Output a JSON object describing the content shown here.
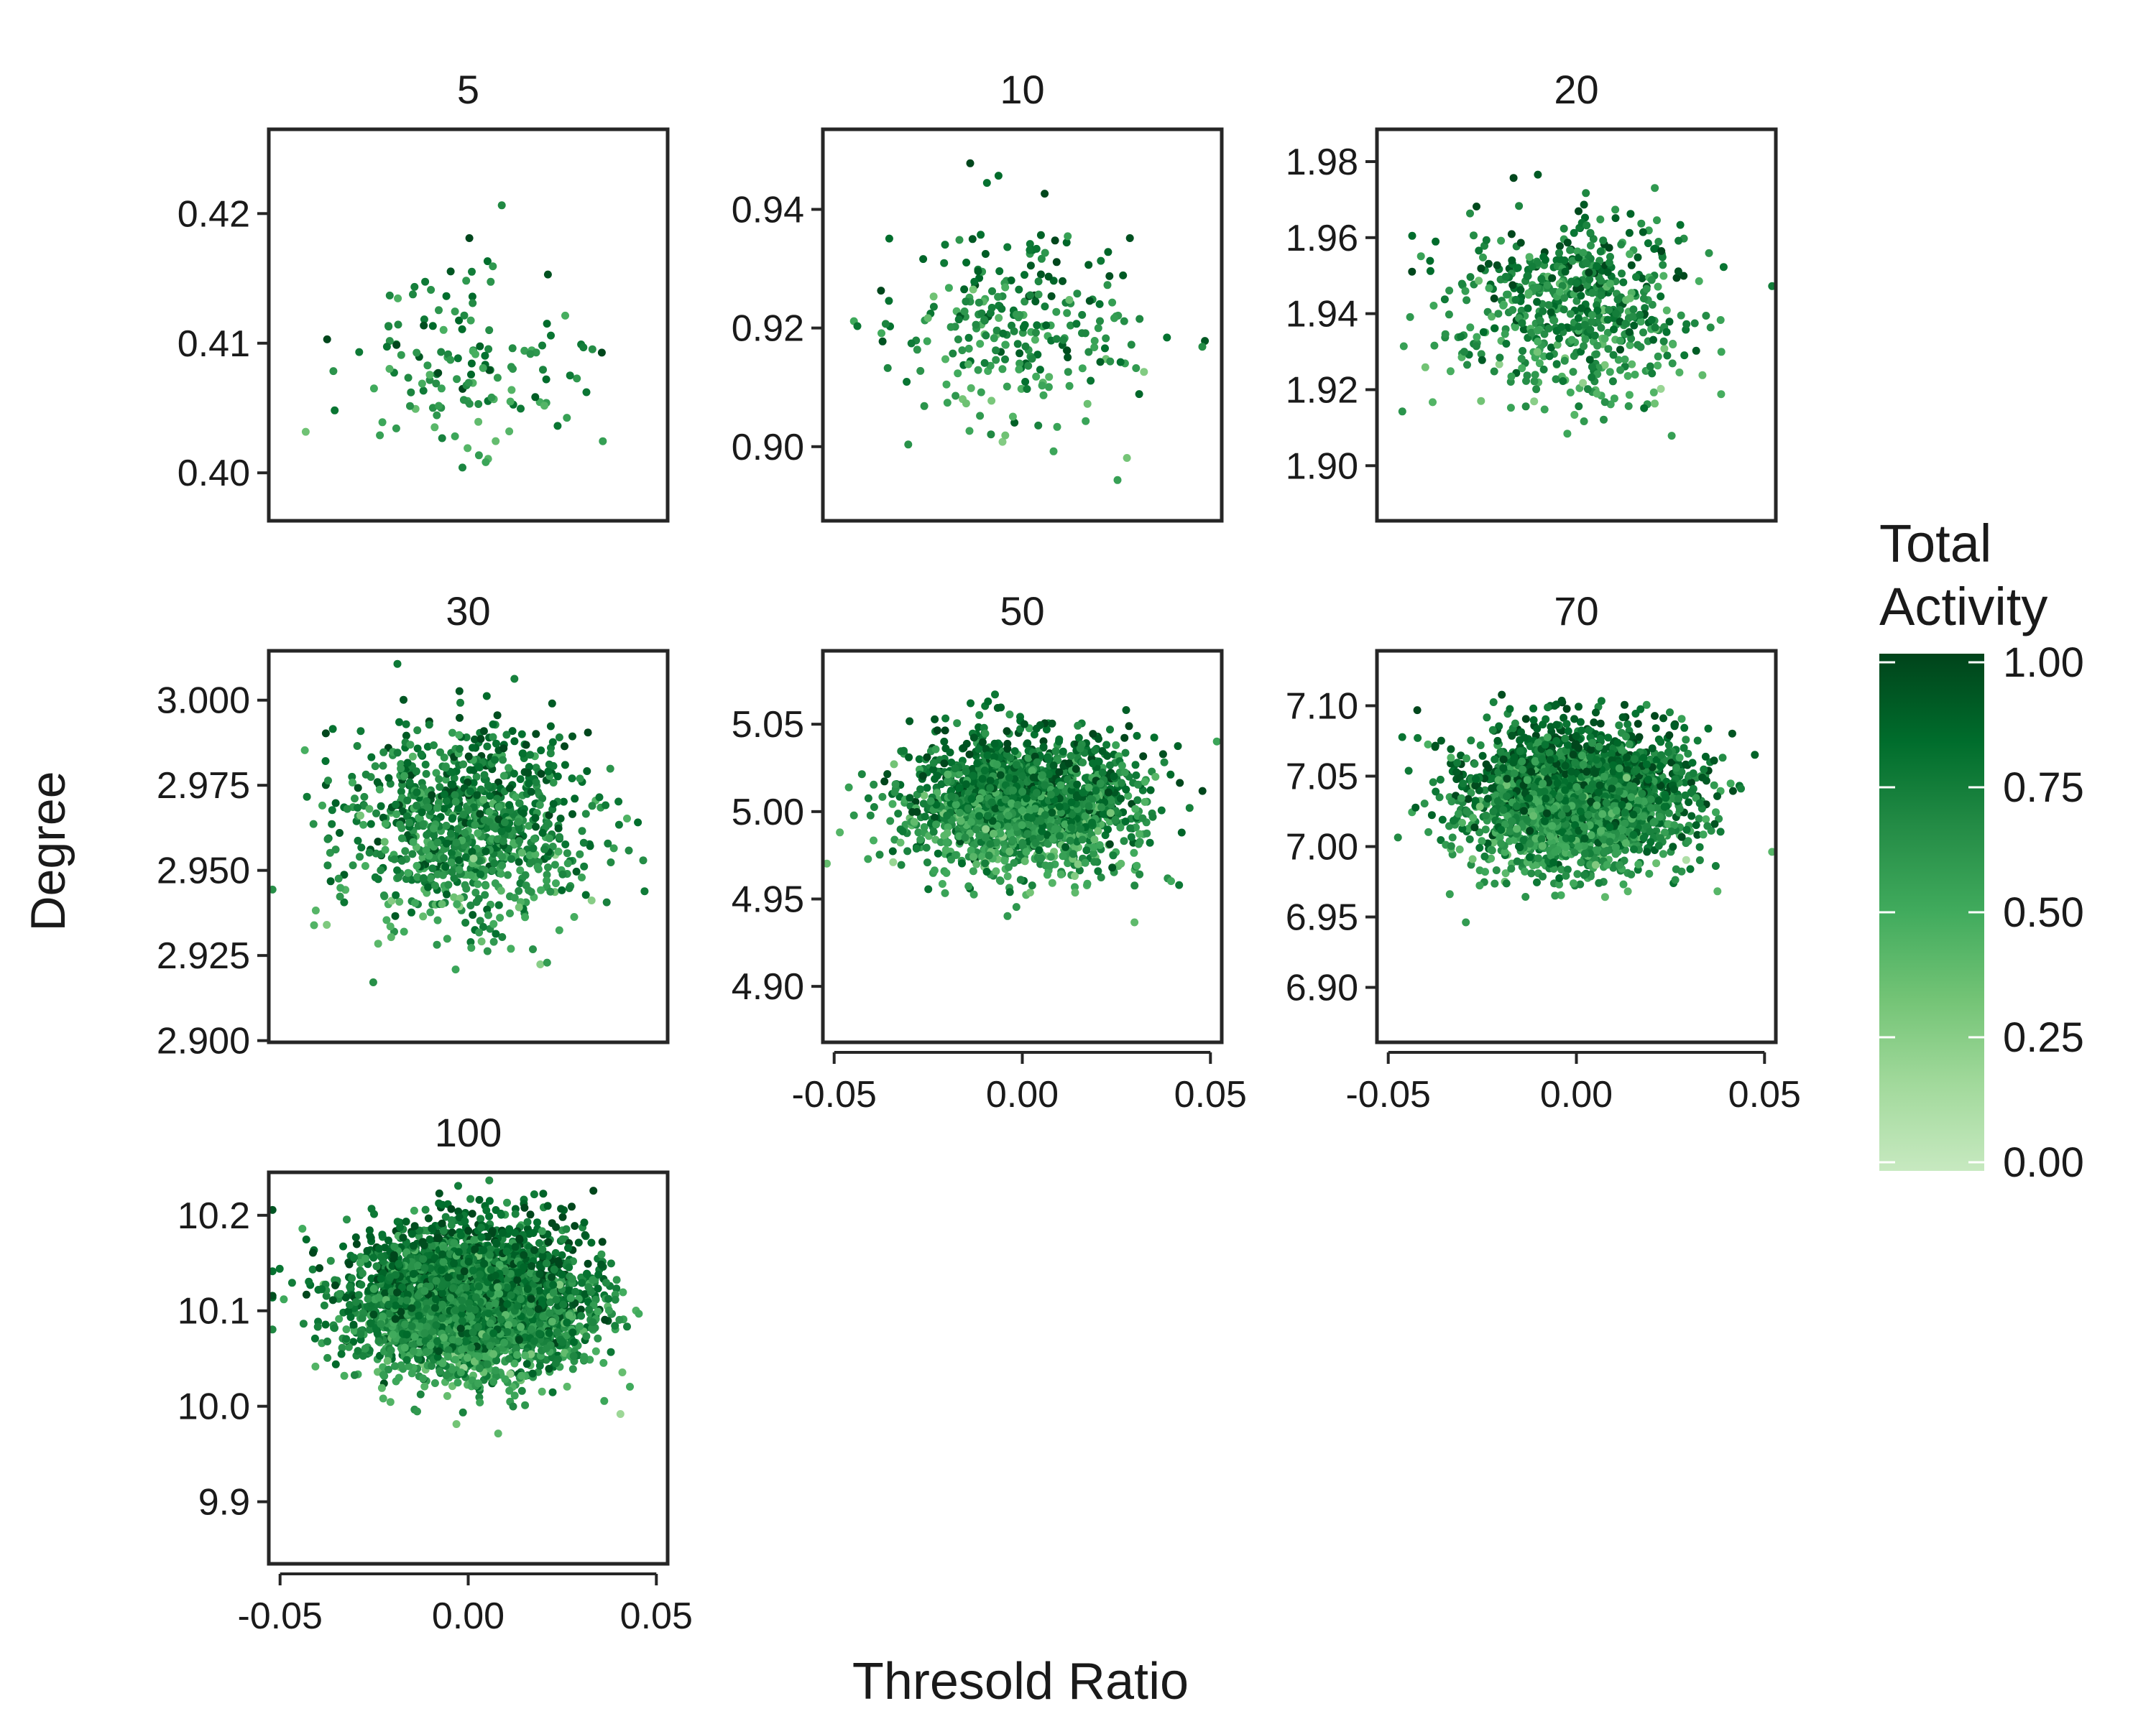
{
  "figure": {
    "xlabel": "Thresold Ratio",
    "ylabel": "Degree"
  },
  "colorbar": {
    "title_lines": [
      "Total",
      "Activity"
    ],
    "range": [
      0,
      1
    ],
    "ticks": [
      0.0,
      0.25,
      0.5,
      0.75,
      1.0
    ],
    "tick_labels": [
      "0.00",
      "0.25",
      "0.50",
      "0.75",
      "1.00"
    ],
    "colors": [
      "#c7e9c0",
      "#a1d99b",
      "#74c476",
      "#41ab5d",
      "#238b45",
      "#006d2c",
      "#00441b"
    ]
  },
  "chart_data": {
    "type": "scatter",
    "facet_by": "5 / 10 / 20 / 30 / 50 / 70 / 100",
    "x_range": [
      -0.05,
      0.05
    ],
    "x_ticks": [
      -0.05,
      0.0,
      0.05
    ],
    "x_tick_labels": [
      "-0.05",
      "0.00",
      "0.05"
    ],
    "color_variable": "Total Activity",
    "panels": [
      {
        "title": "5",
        "point_count": 140,
        "y_ticks": [
          0.4,
          0.41,
          0.42
        ],
        "y_tick_labels": [
          "0.40",
          "0.41",
          "0.42"
        ],
        "ylim": [
          0.3963,
          0.4265
        ],
        "y_center": 0.4085,
        "y_sd": 0.0045,
        "x_sd": 0.016,
        "activity_mean": 0.66,
        "x_axis_shown": false
      },
      {
        "title": "10",
        "point_count": 260,
        "y_ticks": [
          0.9,
          0.92,
          0.94
        ],
        "y_tick_labels": [
          "0.90",
          "0.92",
          "0.94"
        ],
        "ylim": [
          0.8875,
          0.9535
        ],
        "y_center": 0.92,
        "y_sd": 0.0105,
        "x_sd": 0.016,
        "activity_mean": 0.67,
        "x_axis_shown": false
      },
      {
        "title": "20",
        "point_count": 600,
        "y_ticks": [
          1.9,
          1.92,
          1.94,
          1.96,
          1.98
        ],
        "y_tick_labels": [
          "1.90",
          "1.92",
          "1.94",
          "1.96",
          "1.98"
        ],
        "ylim": [
          1.8855,
          1.9885
        ],
        "y_center": 1.942,
        "y_sd": 0.0155,
        "x_sd": 0.016,
        "activity_mean": 0.68,
        "x_axis_shown": false
      },
      {
        "title": "30",
        "point_count": 950,
        "y_ticks": [
          2.9,
          2.925,
          2.95,
          2.975,
          3.0
        ],
        "y_tick_labels": [
          "2.900",
          "2.925",
          "2.950",
          "2.975",
          "3.000"
        ],
        "ylim": [
          2.8995,
          3.0145
        ],
        "y_center": 2.963,
        "y_sd": 0.019,
        "x_sd": 0.016,
        "activity_mean": 0.69,
        "x_axis_shown": false
      },
      {
        "title": "50",
        "point_count": 1700,
        "y_ticks": [
          4.9,
          4.95,
          5.0,
          5.05
        ],
        "y_tick_labels": [
          "4.90",
          "4.95",
          "5.00",
          "5.05"
        ],
        "ylim": [
          4.868,
          5.092
        ],
        "y_center": 5.005,
        "y_sd": 0.024,
        "x_sd": 0.0155,
        "activity_mean": 0.7,
        "x_axis_shown": true
      },
      {
        "title": "70",
        "point_count": 2400,
        "y_ticks": [
          6.9,
          6.95,
          7.0,
          7.05,
          7.1
        ],
        "y_tick_labels": [
          "6.90",
          "6.95",
          "7.00",
          "7.05",
          "7.10"
        ],
        "ylim": [
          6.861,
          7.139
        ],
        "y_center": 7.035,
        "y_sd": 0.03,
        "x_sd": 0.015,
        "activity_mean": 0.72,
        "x_axis_shown": true
      },
      {
        "title": "100",
        "point_count": 3300,
        "y_ticks": [
          9.9,
          10.0,
          10.1,
          10.2
        ],
        "y_tick_labels": [
          "9.9",
          "10.0",
          "10.1",
          "10.2"
        ],
        "ylim": [
          9.835,
          10.245
        ],
        "y_center": 10.11,
        "y_sd": 0.047,
        "x_sd": 0.0155,
        "activity_mean": 0.72,
        "x_axis_shown": true
      }
    ]
  }
}
